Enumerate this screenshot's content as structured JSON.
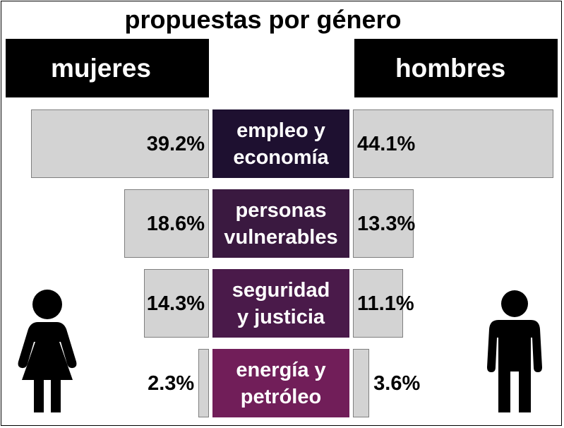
{
  "chart_data": {
    "type": "bar",
    "title": "propuestas por género",
    "categories": [
      "empleo y\neconomía",
      "personas\nvulnerables",
      "seguridad\ny justicia",
      "energía y\npetróleo"
    ],
    "series": [
      {
        "name": "mujeres",
        "values": [
          39.2,
          18.6,
          14.3,
          2.3
        ],
        "labels": [
          "39.2%",
          "18.6%",
          "14.3%",
          "2.3%"
        ]
      },
      {
        "name": "hombres",
        "values": [
          44.1,
          13.3,
          11.1,
          3.6
        ],
        "labels": [
          "44.1%",
          "13.3%",
          "11.1%",
          "3.6%"
        ]
      }
    ],
    "xlim": [
      0,
      44.1
    ],
    "orientation": "butterfly",
    "grid": false
  },
  "colors": {
    "bar_fill": "#d3d3d3",
    "bar_border": "#7f7f7f",
    "header_bg": "#000000",
    "category_fills": [
      "#1e1030",
      "#3a1940",
      "#4a1a4a",
      "#711e59"
    ]
  },
  "icons": {
    "left": "woman-icon",
    "right": "man-icon"
  }
}
